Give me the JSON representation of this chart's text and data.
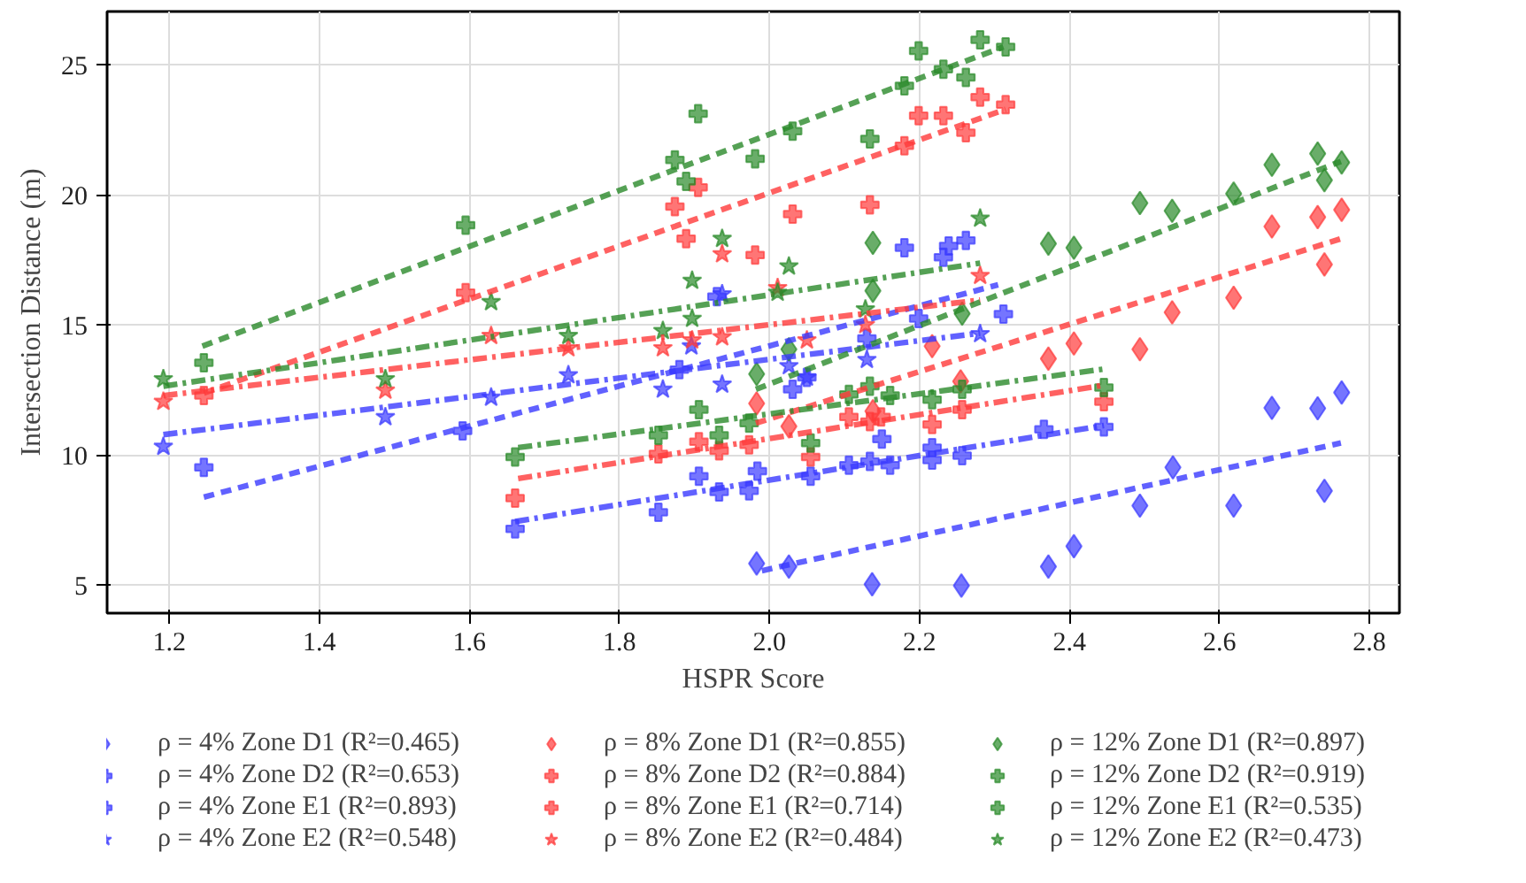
{
  "chart_data": {
    "type": "scatter",
    "xlabel": "HSPR Score",
    "ylabel": "Intersection Distance (m)",
    "xlim": [
      1.117,
      2.84
    ],
    "ylim": [
      3.94,
      27.06
    ],
    "xticks": [
      {
        "value": 1.2,
        "label": "1.2"
      },
      {
        "value": 1.4,
        "label": "1.4"
      },
      {
        "value": 1.6,
        "label": "1.6"
      },
      {
        "value": 1.8,
        "label": "1.8"
      },
      {
        "value": 2.0,
        "label": "2.0"
      },
      {
        "value": 2.2,
        "label": "2.2"
      },
      {
        "value": 2.4,
        "label": "2.4"
      },
      {
        "value": 2.6,
        "label": "2.6"
      },
      {
        "value": 2.8,
        "label": "2.8"
      }
    ],
    "yticks": [
      5,
      10,
      15,
      20,
      25
    ],
    "grid": true,
    "legend": "bottom",
    "series": [
      {
        "name": "ρ = 4% Zone D1 (R²=0.465)",
        "color": "#3a3aff",
        "marker": "diamond",
        "x": [
          1.983,
          2.026,
          2.137,
          2.256,
          2.372,
          2.406,
          2.494,
          2.538,
          2.619,
          2.67,
          2.731,
          2.74,
          2.763
        ],
        "values": [
          5.85,
          5.73,
          5.05,
          5.0,
          5.73,
          6.51,
          8.07,
          9.54,
          8.07,
          11.83,
          11.81,
          8.64,
          12.42
        ]
      },
      {
        "name": "ρ = 4% Zone D2 (R²=0.653)",
        "color": "#3a3aff",
        "marker": "cross",
        "x": [
          1.246,
          1.591,
          1.88,
          1.93,
          2.031,
          2.05,
          2.13,
          2.18,
          2.199,
          2.232,
          2.239,
          2.262,
          2.312
        ],
        "values": [
          9.54,
          10.94,
          13.3,
          16.1,
          12.54,
          13.0,
          14.5,
          17.98,
          15.26,
          17.62,
          18.05,
          18.26,
          15.43
        ]
      },
      {
        "name": "ρ = 4% Zone E1 (R²=0.893)",
        "color": "#3a3aff",
        "marker": "cross",
        "x": [
          1.661,
          1.852,
          1.906,
          1.933,
          1.973,
          1.984,
          2.055,
          2.106,
          2.134,
          2.15,
          2.161,
          2.217,
          2.217,
          2.257,
          2.366,
          2.446
        ],
        "values": [
          7.18,
          7.82,
          9.2,
          8.6,
          8.64,
          9.4,
          9.2,
          9.63,
          9.77,
          10.63,
          9.63,
          10.3,
          9.82,
          9.99,
          11.0,
          11.1
        ]
      },
      {
        "name": "ρ = 4% Zone E2 (R²=0.548)",
        "color": "#3a3aff",
        "marker": "star",
        "x": [
          1.192,
          1.488,
          1.629,
          1.732,
          1.858,
          1.896,
          1.937,
          1.937,
          2.026,
          2.05,
          2.13,
          2.281
        ],
        "values": [
          10.34,
          11.48,
          12.23,
          13.09,
          12.54,
          14.2,
          12.73,
          16.2,
          13.44,
          13.0,
          13.68,
          14.67
        ]
      },
      {
        "name": "ρ = 8% Zone D1 (R²=0.855)",
        "color": "#ff3a3a",
        "marker": "diamond",
        "x": [
          1.983,
          2.026,
          2.138,
          2.217,
          2.255,
          2.372,
          2.406,
          2.494,
          2.537,
          2.619,
          2.67,
          2.731,
          2.74,
          2.763
        ],
        "values": [
          12.0,
          11.12,
          11.7,
          14.2,
          12.85,
          13.72,
          14.3,
          14.08,
          15.5,
          16.06,
          18.8,
          19.16,
          17.34,
          19.44
        ]
      },
      {
        "name": "ρ = 8% Zone D2 (R²=0.884)",
        "color": "#ff3a3a",
        "marker": "cross",
        "x": [
          1.246,
          1.595,
          1.874,
          1.889,
          1.905,
          1.981,
          2.031,
          2.134,
          2.18,
          2.199,
          2.232,
          2.262,
          2.281,
          2.315
        ],
        "values": [
          12.3,
          16.26,
          19.56,
          18.33,
          20.3,
          17.7,
          19.27,
          19.63,
          21.9,
          23.06,
          23.06,
          22.4,
          23.77,
          23.48
        ]
      },
      {
        "name": "ρ = 8% Zone E1 (R²=0.714)",
        "color": "#ff3a3a",
        "marker": "cross",
        "x": [
          1.661,
          1.852,
          1.906,
          1.933,
          1.973,
          2.055,
          2.106,
          2.134,
          2.149,
          2.217,
          2.257,
          2.446
        ],
        "values": [
          8.36,
          10.06,
          10.53,
          10.18,
          10.41,
          9.94,
          11.48,
          11.3,
          11.48,
          11.19,
          11.76,
          12.07
        ]
      },
      {
        "name": "ρ = 8% Zone E2 (R²=0.484)",
        "color": "#ff3a3a",
        "marker": "star",
        "x": [
          1.192,
          1.488,
          1.629,
          1.732,
          1.858,
          1.897,
          1.937,
          1.937,
          2.011,
          2.05,
          2.128,
          2.281
        ],
        "values": [
          12.07,
          12.5,
          14.6,
          14.13,
          14.13,
          14.43,
          14.55,
          17.74,
          16.44,
          14.43,
          15.02,
          16.91
        ]
      },
      {
        "name": "ρ = 12% Zone D1 (R²=0.897)",
        "color": "#2a8a2a",
        "marker": "diamond",
        "x": [
          1.983,
          2.026,
          2.138,
          2.138,
          2.257,
          2.372,
          2.406,
          2.494,
          2.537,
          2.619,
          2.67,
          2.731,
          2.74,
          2.763
        ],
        "values": [
          13.13,
          14.08,
          18.17,
          16.33,
          15.45,
          18.14,
          17.98,
          19.7,
          19.4,
          20.06,
          21.17,
          21.6,
          20.58,
          21.26
        ]
      },
      {
        "name": "ρ = 12% Zone D2 (R²=0.919)",
        "color": "#2a8a2a",
        "marker": "cross",
        "x": [
          1.246,
          1.595,
          1.874,
          1.889,
          1.905,
          1.981,
          2.031,
          2.134,
          2.18,
          2.199,
          2.232,
          2.262,
          2.281,
          2.315
        ],
        "values": [
          13.56,
          18.85,
          21.36,
          20.53,
          23.13,
          21.4,
          22.46,
          22.16,
          24.2,
          25.55,
          24.84,
          24.53,
          25.97,
          25.7
        ]
      },
      {
        "name": "ρ = 12% Zone E1 (R²=0.535)",
        "color": "#2a8a2a",
        "marker": "cross",
        "x": [
          1.661,
          1.852,
          1.906,
          1.933,
          1.973,
          2.055,
          2.106,
          2.134,
          2.161,
          2.217,
          2.257,
          2.446
        ],
        "values": [
          9.94,
          10.77,
          11.76,
          10.77,
          11.24,
          10.48,
          12.35,
          12.66,
          12.3,
          12.14,
          12.54,
          12.61
        ]
      },
      {
        "name": "ρ = 12% Zone E2 (R²=0.473)",
        "color": "#2a8a2a",
        "marker": "star",
        "x": [
          1.192,
          1.488,
          1.629,
          1.732,
          1.858,
          1.897,
          1.897,
          1.937,
          2.011,
          2.026,
          2.128,
          2.281
        ],
        "values": [
          12.94,
          12.94,
          15.9,
          14.6,
          14.79,
          15.26,
          16.72,
          18.33,
          16.26,
          17.27,
          15.62,
          19.11
        ]
      },
      {
        "type": "line",
        "color": "#3a3aff",
        "line_style": "dashed",
        "marker": "none",
        "x": [
          1.99,
          2.762
        ],
        "values": [
          5.57,
          10.48
        ]
      },
      {
        "type": "line",
        "color": "#3a3aff",
        "line_style": "dashed",
        "marker": "none",
        "x": [
          1.246,
          2.305
        ],
        "values": [
          8.4,
          16.56
        ]
      },
      {
        "type": "line",
        "color": "#3a3aff",
        "line_style": "dashdot",
        "marker": "none",
        "x": [
          1.661,
          2.446
        ],
        "values": [
          7.46,
          11.15
        ]
      },
      {
        "type": "line",
        "color": "#3a3aff",
        "line_style": "dashdot",
        "marker": "none",
        "x": [
          1.192,
          2.281
        ],
        "values": [
          10.8,
          14.7
        ]
      },
      {
        "type": "line",
        "color": "#ff3a3a",
        "line_style": "dashed",
        "marker": "none",
        "x": [
          1.982,
          2.762
        ],
        "values": [
          11.24,
          18.33
        ]
      },
      {
        "type": "line",
        "color": "#ff3a3a",
        "line_style": "dashed",
        "marker": "none",
        "x": [
          1.246,
          2.315
        ],
        "values": [
          12.4,
          23.3
        ]
      },
      {
        "type": "line",
        "color": "#ff3a3a",
        "line_style": "dashdot",
        "marker": "none",
        "x": [
          1.665,
          2.446
        ],
        "values": [
          9.11,
          12.7
        ]
      },
      {
        "type": "line",
        "color": "#ff3a3a",
        "line_style": "dashdot",
        "marker": "none",
        "x": [
          1.192,
          2.281
        ],
        "values": [
          12.3,
          15.97
        ]
      },
      {
        "type": "line",
        "color": "#2a8a2a",
        "line_style": "dashed",
        "marker": "none",
        "x": [
          1.982,
          2.762
        ],
        "values": [
          12.54,
          21.3
        ]
      },
      {
        "type": "line",
        "color": "#2a8a2a",
        "line_style": "dashed",
        "marker": "none",
        "x": [
          1.244,
          2.312
        ],
        "values": [
          14.2,
          25.7
        ]
      },
      {
        "type": "line",
        "color": "#2a8a2a",
        "line_style": "dashdot",
        "marker": "none",
        "x": [
          1.665,
          2.446
        ],
        "values": [
          10.3,
          13.32
        ]
      },
      {
        "type": "line",
        "color": "#2a8a2a",
        "line_style": "dashdot",
        "marker": "none",
        "x": [
          1.192,
          2.281
        ],
        "values": [
          12.66,
          17.39
        ]
      }
    ]
  }
}
